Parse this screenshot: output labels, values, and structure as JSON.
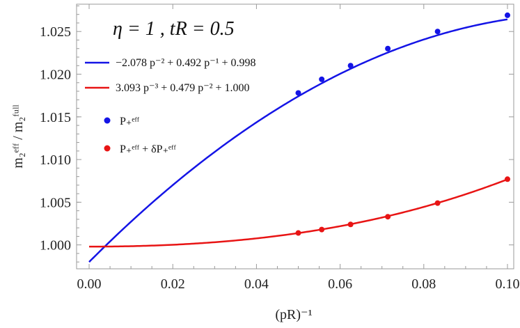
{
  "chart_data": {
    "type": "scatter",
    "annotation": "η = 1 , tR = 0.5",
    "xlabel": "(pR)⁻¹",
    "ylabel": "m₂ᵉᶠᶠ / m₂ᶠᵘˡˡ",
    "xlim": [
      -0.003,
      0.1015
    ],
    "ylim": [
      0.9972,
      1.0282
    ],
    "x_ticks": [
      0.0,
      0.02,
      0.04,
      0.06,
      0.08,
      0.1
    ],
    "x_tick_labels": [
      "0.00",
      "0.02",
      "0.04",
      "0.06",
      "0.08",
      "0.10"
    ],
    "y_ticks": [
      1.0,
      1.005,
      1.01,
      1.015,
      1.02,
      1.025
    ],
    "y_tick_labels": [
      "1.000",
      "1.005",
      "1.010",
      "1.015",
      "1.020",
      "1.025"
    ],
    "grid": false,
    "legend_position": "top-left",
    "series": [
      {
        "name": "P₊ᵉᶠᶠ",
        "kind": "points",
        "color": "#1414e6",
        "x": [
          0.05,
          0.0556,
          0.0625,
          0.0714,
          0.0833,
          0.1
        ],
        "y": [
          1.0178,
          1.0194,
          1.021,
          1.023,
          1.025,
          1.0269
        ]
      },
      {
        "name": "P₊ᵉᶠᶠ + δP₊ᵉᶠᶠ",
        "kind": "points",
        "color": "#e81414",
        "x": [
          0.05,
          0.0556,
          0.0625,
          0.0714,
          0.0833,
          0.1
        ],
        "y": [
          1.0014,
          1.0018,
          1.0024,
          1.0033,
          1.0049,
          1.0077
        ]
      }
    ],
    "fits": [
      {
        "name": "−2.078 p⁻² + 0.492 p⁻¹ + 0.998",
        "kind": "curve",
        "color": "#1414e6",
        "coefficients": {
          "p2": -2.078,
          "p1": 0.492,
          "p0": 0.998
        }
      },
      {
        "name": "3.093 p⁻³ + 0.479 p⁻² + 1.000",
        "kind": "curve",
        "color": "#e81414",
        "coefficients": {
          "p3": 3.093,
          "p2": 0.479,
          "p0": 0.9998
        }
      }
    ],
    "legend": {
      "fit_blue": "−2.078 p⁻² + 0.492 p⁻¹ + 0.998",
      "fit_red": "3.093 p⁻³ + 0.479 p⁻² + 1.000",
      "points_blue": "P₊ᵉᶠᶠ",
      "points_red": "P₊ᵉᶠᶠ + δP₊ᵉᶠᶠ"
    }
  }
}
